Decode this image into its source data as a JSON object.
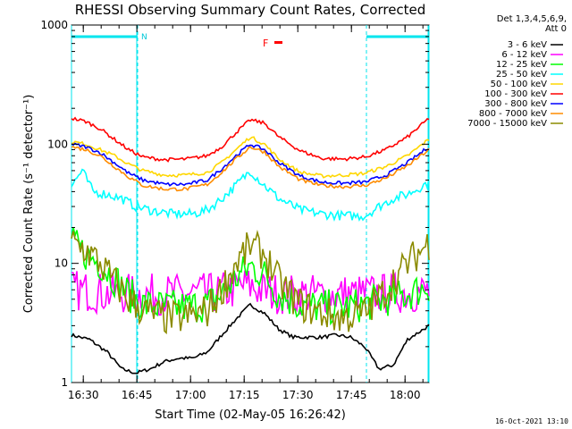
{
  "chart_data": {
    "type": "line",
    "title": "RHESSI Observing Summary Count Rates, Corrected",
    "xlabel": "Start Time (02-May-05 16:26:42)",
    "ylabel": "Corrected Count Rate (s⁻¹ detector⁻¹)",
    "yscale": "log",
    "ylim": [
      1,
      1000
    ],
    "xlim_minutes": [
      0,
      100
    ],
    "x_ticks": [
      "16:30",
      "16:45",
      "17:00",
      "17:15",
      "17:30",
      "17:45",
      "18:00"
    ],
    "y_ticks": [
      "1",
      "10",
      "100",
      "1000"
    ],
    "legend_header": [
      "Det 1,3,4,5,6,9,",
      "Att 0"
    ],
    "footer_date": "16-Oct-2021 13:10",
    "flags": {
      "night_label": "N",
      "flare_label": "F"
    },
    "night_intervals": [
      [
        0,
        18.5
      ],
      [
        82.5,
        100
      ]
    ],
    "series": [
      {
        "name": "3 - 6 keV",
        "color": "#000000",
        "x": [
          0,
          5,
          10,
          14,
          18,
          22,
          26,
          30,
          34,
          38,
          42,
          46,
          50,
          54,
          58,
          62,
          66,
          70,
          74,
          78,
          82,
          86,
          90,
          94,
          100
        ],
        "values": [
          2.5,
          2.3,
          1.8,
          1.3,
          1.2,
          1.3,
          1.5,
          1.6,
          1.6,
          1.8,
          2.5,
          3.4,
          4.5,
          3.8,
          2.8,
          2.4,
          2.4,
          2.4,
          2.5,
          2.4,
          2.0,
          1.3,
          1.4,
          2.3,
          3.0
        ]
      },
      {
        "name": "6 - 12 keV",
        "color": "#ff00ff",
        "x": [
          0,
          10,
          20,
          30,
          40,
          45,
          48,
          51,
          54,
          60,
          70,
          80,
          90,
          100
        ],
        "values": [
          6.0,
          5.6,
          5.5,
          5.5,
          5.6,
          6.0,
          6.5,
          6.3,
          5.8,
          5.5,
          5.5,
          5.5,
          5.6,
          5.8
        ]
      },
      {
        "name": "12 - 25 keV",
        "color": "#00ff00",
        "x": [
          0,
          4,
          8,
          12,
          16,
          20,
          26,
          32,
          38,
          42,
          46,
          50,
          54,
          58,
          64,
          70,
          76,
          82,
          88,
          94,
          100
        ],
        "values": [
          15,
          12,
          10,
          7.5,
          5.5,
          4.5,
          4.3,
          4.3,
          4.5,
          5.5,
          7.5,
          9.5,
          8.0,
          5.5,
          4.5,
          4.3,
          4.3,
          4.5,
          5.0,
          5.5,
          6.5
        ]
      },
      {
        "name": "25 - 50 keV",
        "color": "#00ffff",
        "x": [
          0,
          3,
          6,
          10,
          14,
          18,
          22,
          28,
          34,
          38,
          42,
          46,
          50,
          54,
          58,
          64,
          70,
          76,
          82,
          86,
          90,
          94,
          100
        ],
        "values": [
          45,
          60,
          40,
          38,
          35,
          30,
          28,
          26,
          26,
          28,
          35,
          45,
          60,
          45,
          35,
          28,
          26,
          25,
          25,
          30,
          35,
          38,
          48
        ]
      },
      {
        "name": "50 - 100 keV",
        "color": "#ffd700",
        "x": [
          0,
          4,
          8,
          12,
          16,
          20,
          26,
          32,
          38,
          42,
          46,
          50,
          54,
          58,
          64,
          70,
          76,
          82,
          88,
          94,
          100
        ],
        "values": [
          105,
          100,
          90,
          80,
          68,
          60,
          55,
          55,
          58,
          70,
          90,
          115,
          100,
          75,
          58,
          54,
          55,
          57,
          65,
          80,
          110
        ]
      },
      {
        "name": "100 - 300 keV",
        "color": "#ff0000",
        "x": [
          0,
          4,
          8,
          12,
          16,
          20,
          26,
          32,
          38,
          42,
          46,
          50,
          54,
          58,
          64,
          70,
          76,
          82,
          88,
          94,
          100
        ],
        "values": [
          165,
          155,
          135,
          110,
          90,
          78,
          74,
          75,
          80,
          95,
          125,
          160,
          150,
          115,
          88,
          76,
          75,
          78,
          90,
          115,
          165
        ]
      },
      {
        "name": "300 - 800 keV",
        "color": "#0000ff",
        "x": [
          0,
          4,
          8,
          12,
          16,
          20,
          26,
          32,
          38,
          42,
          46,
          50,
          54,
          58,
          64,
          70,
          76,
          82,
          88,
          94,
          100
        ],
        "values": [
          100,
          95,
          85,
          70,
          57,
          50,
          46,
          46,
          50,
          62,
          80,
          100,
          90,
          70,
          54,
          48,
          47,
          48,
          55,
          70,
          95
        ]
      },
      {
        "name": "800 - 7000 keV",
        "color": "#ff8c00",
        "x": [
          0,
          4,
          8,
          12,
          16,
          20,
          26,
          32,
          38,
          42,
          46,
          50,
          54,
          58,
          64,
          70,
          76,
          82,
          88,
          94,
          100
        ],
        "values": [
          95,
          90,
          80,
          65,
          53,
          45,
          42,
          42,
          46,
          58,
          75,
          95,
          86,
          65,
          50,
          45,
          44,
          45,
          52,
          66,
          90
        ]
      },
      {
        "name": "7000 - 15000 keV",
        "color": "#8b8b00",
        "x": [
          0,
          4,
          8,
          12,
          16,
          20,
          26,
          32,
          38,
          42,
          46,
          50,
          54,
          58,
          64,
          70,
          76,
          82,
          88,
          94,
          100
        ],
        "values": [
          15,
          13,
          10,
          7,
          5,
          4,
          3.5,
          3.5,
          4,
          6,
          10,
          14,
          12,
          7,
          4.5,
          3.8,
          3.5,
          3.8,
          6,
          10,
          15
        ]
      }
    ]
  }
}
